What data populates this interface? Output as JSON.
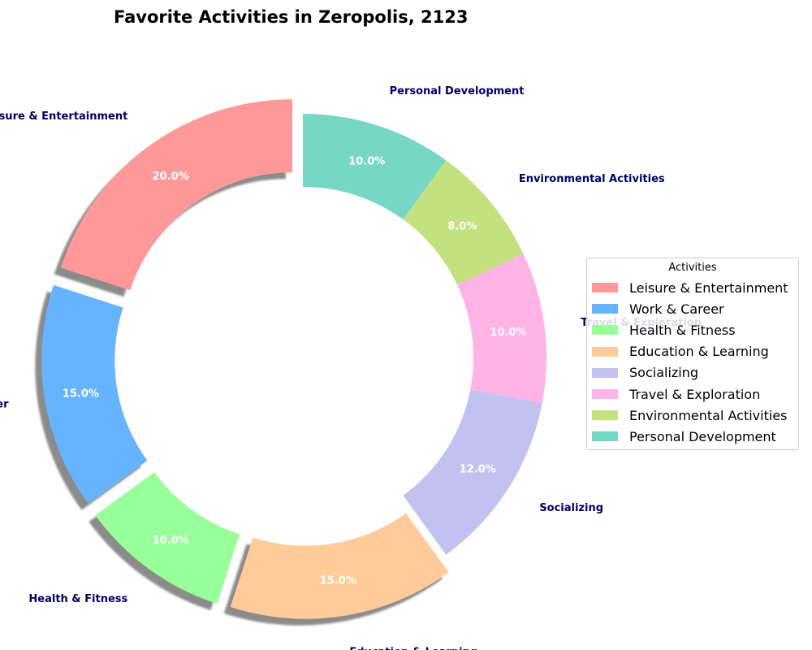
{
  "chart_data": {
    "type": "pie",
    "variant": "donut",
    "title": "Favorite Activities in Zeropolis, 2123",
    "categories": [
      "Leisure & Entertainment",
      "Work & Career",
      "Health & Fitness",
      "Education & Learning",
      "Socializing",
      "Travel & Exploration",
      "Environmental Activities",
      "Personal Development"
    ],
    "values": [
      20,
      15,
      10,
      15,
      12,
      10,
      8,
      10
    ],
    "percent_labels": [
      "20.0%",
      "15.0%",
      "10.0%",
      "15.0%",
      "12.0%",
      "10.0%",
      "8.0%",
      "10.0%"
    ],
    "colors": [
      "#ff9999",
      "#66b3ff",
      "#99ff99",
      "#ffcc99",
      "#c2c2f0",
      "#ffb3e6",
      "#c4e17f",
      "#76d7c4"
    ],
    "exploded": [
      true,
      true,
      true,
      true,
      false,
      false,
      false,
      false
    ],
    "shadow": true,
    "start_angle_deg": 90,
    "direction": "counterclockwise",
    "label_color": "#000066",
    "pct_color": "#ffffff",
    "legend": {
      "title": "Activities",
      "placement": "center-right",
      "entries": [
        "Leisure & Entertainment",
        "Work & Career",
        "Health & Fitness",
        "Education & Learning",
        "Socializing",
        "Travel & Exploration",
        "Environmental Activities",
        "Personal Development"
      ]
    }
  }
}
